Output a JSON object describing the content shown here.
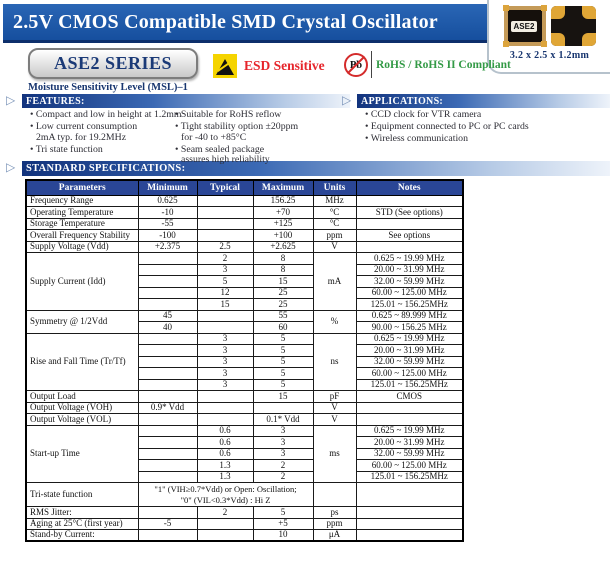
{
  "header": {
    "title": "2.5V CMOS Compatible SMD Crystal Oscillator",
    "series_badge": "ASE2 SERIES",
    "msl_note": "Moisture Sensitivity Level (MSL)–1",
    "esd_label": "ESD Sensitive",
    "pb_symbol": "Pb",
    "rohs_label": "RoHS / RoHS II Compliant"
  },
  "package": {
    "chip_label": "ASE2",
    "dimensions": "3.2 x 2.5 x 1.2mm"
  },
  "features": {
    "heading": "FEATURES:",
    "col1": [
      [
        "Compact and low in height at 1.2mm"
      ],
      [
        "Low current consumption",
        "2mA typ. for 19.2MHz"
      ],
      [
        "Tri state function"
      ]
    ],
    "col2": [
      [
        "Suitable for RoHS reflow"
      ],
      [
        "Tight stability option ±20ppm",
        "for -40 to +85°C"
      ],
      [
        "Seam sealed package",
        "assures high reliability"
      ]
    ]
  },
  "applications": {
    "heading": "APPLICATIONS:",
    "items": [
      [
        "CCD clock for VTR camera"
      ],
      [
        "Equipment connected to PC or PC cards"
      ],
      [
        "Wireless communication"
      ]
    ]
  },
  "specs": {
    "heading": "STANDARD SPECIFICATIONS:",
    "columns": [
      "Parameters",
      "Minimum",
      "Typical",
      "Maximum",
      "Units",
      "Notes"
    ],
    "rows": [
      [
        {
          "t": "Frequency Range",
          "p": 1
        },
        {
          "t": "0.625"
        },
        {
          "t": ""
        },
        {
          "t": "156.25"
        },
        {
          "t": "MHz"
        },
        {
          "t": ""
        }
      ],
      [
        {
          "t": "Operating Temperature",
          "p": 1
        },
        {
          "t": "-10"
        },
        {
          "t": ""
        },
        {
          "t": "+70"
        },
        {
          "t": "°C"
        },
        {
          "t": "STD (See options)"
        }
      ],
      [
        {
          "t": "Storage Temperature",
          "p": 1
        },
        {
          "t": "-55"
        },
        {
          "t": ""
        },
        {
          "t": "+125"
        },
        {
          "t": "°C"
        },
        {
          "t": ""
        }
      ],
      [
        {
          "t": "Overall Frequency Stability",
          "p": 1
        },
        {
          "t": "-100"
        },
        {
          "t": ""
        },
        {
          "t": "+100"
        },
        {
          "t": "ppm"
        },
        {
          "t": "See options"
        }
      ],
      [
        {
          "t": "Supply Voltage (Vdd)",
          "p": 1
        },
        {
          "t": "+2.375"
        },
        {
          "t": "2.5"
        },
        {
          "t": "+2.625"
        },
        {
          "t": "V"
        },
        {
          "t": ""
        }
      ],
      [
        {
          "t": "Supply Current (Idd)",
          "p": 1,
          "rs": 5
        },
        {
          "t": ""
        },
        {
          "t": "2"
        },
        {
          "t": "8"
        },
        {
          "t": "mA",
          "rs": 5
        },
        {
          "t": "0.625 ~ 19.99 MHz"
        }
      ],
      [
        {
          "t": ""
        },
        {
          "t": "3"
        },
        {
          "t": "8"
        },
        {
          "t": "20.00 ~ 31.99 MHz"
        }
      ],
      [
        {
          "t": ""
        },
        {
          "t": "5"
        },
        {
          "t": "15"
        },
        {
          "t": "32.00 ~ 59.99 MHz"
        }
      ],
      [
        {
          "t": ""
        },
        {
          "t": "12"
        },
        {
          "t": "25"
        },
        {
          "t": "60.00 ~ 125.00 MHz"
        }
      ],
      [
        {
          "t": ""
        },
        {
          "t": "15"
        },
        {
          "t": "25"
        },
        {
          "t": "125.01 ~ 156.25MHz"
        }
      ],
      [
        {
          "t": "Symmetry  @ 1/2Vdd",
          "p": 1,
          "rs": 2
        },
        {
          "t": "45"
        },
        {
          "t": ""
        },
        {
          "t": "55"
        },
        {
          "t": "%",
          "rs": 2
        },
        {
          "t": "0.625 ~ 89.999 MHz"
        }
      ],
      [
        {
          "t": "40"
        },
        {
          "t": ""
        },
        {
          "t": "60"
        },
        {
          "t": "90.00 ~ 156.25 MHz"
        }
      ],
      [
        {
          "t": "Rise and Fall Time (Tr/Tf)",
          "p": 1,
          "rs": 5
        },
        {
          "t": ""
        },
        {
          "t": "3"
        },
        {
          "t": "5"
        },
        {
          "t": "ns",
          "rs": 5
        },
        {
          "t": "0.625 ~ 19.99 MHz"
        }
      ],
      [
        {
          "t": ""
        },
        {
          "t": "3"
        },
        {
          "t": "5"
        },
        {
          "t": "20.00 ~ 31.99 MHz"
        }
      ],
      [
        {
          "t": ""
        },
        {
          "t": "3"
        },
        {
          "t": "5"
        },
        {
          "t": "32.00 ~ 59.99 MHz"
        }
      ],
      [
        {
          "t": ""
        },
        {
          "t": "3"
        },
        {
          "t": "5"
        },
        {
          "t": "60.00 ~ 125.00 MHz"
        }
      ],
      [
        {
          "t": ""
        },
        {
          "t": "3"
        },
        {
          "t": "5"
        },
        {
          "t": "125.01 ~ 156.25MHz"
        }
      ],
      [
        {
          "t": "Output Load",
          "p": 1
        },
        {
          "t": ""
        },
        {
          "t": ""
        },
        {
          "t": "15"
        },
        {
          "t": "pF"
        },
        {
          "t": "CMOS"
        }
      ],
      [
        {
          "t": "Output Voltage (VOH)",
          "p": 1
        },
        {
          "t": "0.9* Vdd"
        },
        {
          "t": ""
        },
        {
          "t": ""
        },
        {
          "t": "V"
        },
        {
          "t": ""
        }
      ],
      [
        {
          "t": "Output Voltage (VOL)",
          "p": 1
        },
        {
          "t": ""
        },
        {
          "t": ""
        },
        {
          "t": "0.1* Vdd"
        },
        {
          "t": "V"
        },
        {
          "t": ""
        }
      ],
      [
        {
          "t": "Start-up Time",
          "p": 1,
          "rs": 5
        },
        {
          "t": ""
        },
        {
          "t": "0.6"
        },
        {
          "t": "3"
        },
        {
          "t": "ms",
          "rs": 5
        },
        {
          "t": "0.625 ~ 19.99 MHz"
        }
      ],
      [
        {
          "t": ""
        },
        {
          "t": "0.6"
        },
        {
          "t": "3"
        },
        {
          "t": "20.00 ~ 31.99 MHz"
        }
      ],
      [
        {
          "t": ""
        },
        {
          "t": "0.6"
        },
        {
          "t": "3"
        },
        {
          "t": "32.00 ~ 59.99 MHz"
        }
      ],
      [
        {
          "t": ""
        },
        {
          "t": "1.3"
        },
        {
          "t": "2"
        },
        {
          "t": "60.00 ~ 125.00 MHz"
        }
      ],
      [
        {
          "t": ""
        },
        {
          "t": "1.3"
        },
        {
          "t": "2"
        },
        {
          "t": "125.01 ~ 156.25MHz"
        }
      ],
      [
        {
          "t": "Tri-state function",
          "p": 1
        },
        {
          "t": "\"1\" (VIH≥0.7*Vdd) or Open: Oscillation;\n\"0\" (VIL<0.3*Vdd) : Hi Z",
          "cs": 3
        },
        {
          "t": ""
        },
        {
          "t": ""
        }
      ],
      [
        {
          "t": "RMS Jitter:",
          "p": 1
        },
        {
          "t": ""
        },
        {
          "t": "2"
        },
        {
          "t": "5"
        },
        {
          "t": "ps"
        },
        {
          "t": ""
        }
      ],
      [
        {
          "t": "Aging at 25°C (first year)",
          "p": 1
        },
        {
          "t": "-5"
        },
        {
          "t": ""
        },
        {
          "t": "+5"
        },
        {
          "t": "ppm"
        },
        {
          "t": ""
        }
      ],
      [
        {
          "t": "Stand-by Current:",
          "p": 1
        },
        {
          "t": ""
        },
        {
          "t": ""
        },
        {
          "t": "10"
        },
        {
          "t": "μA"
        },
        {
          "t": ""
        }
      ]
    ]
  },
  "colors": {
    "header_blue": "#1b55a3",
    "table_header_navy": "#2a4696",
    "section_bar_navy": "#12337d",
    "accent_navy_text": "#17356f",
    "esd_red": "#e6252b",
    "rohs_green": "#339a46",
    "pad_gold": "#e0a636"
  }
}
